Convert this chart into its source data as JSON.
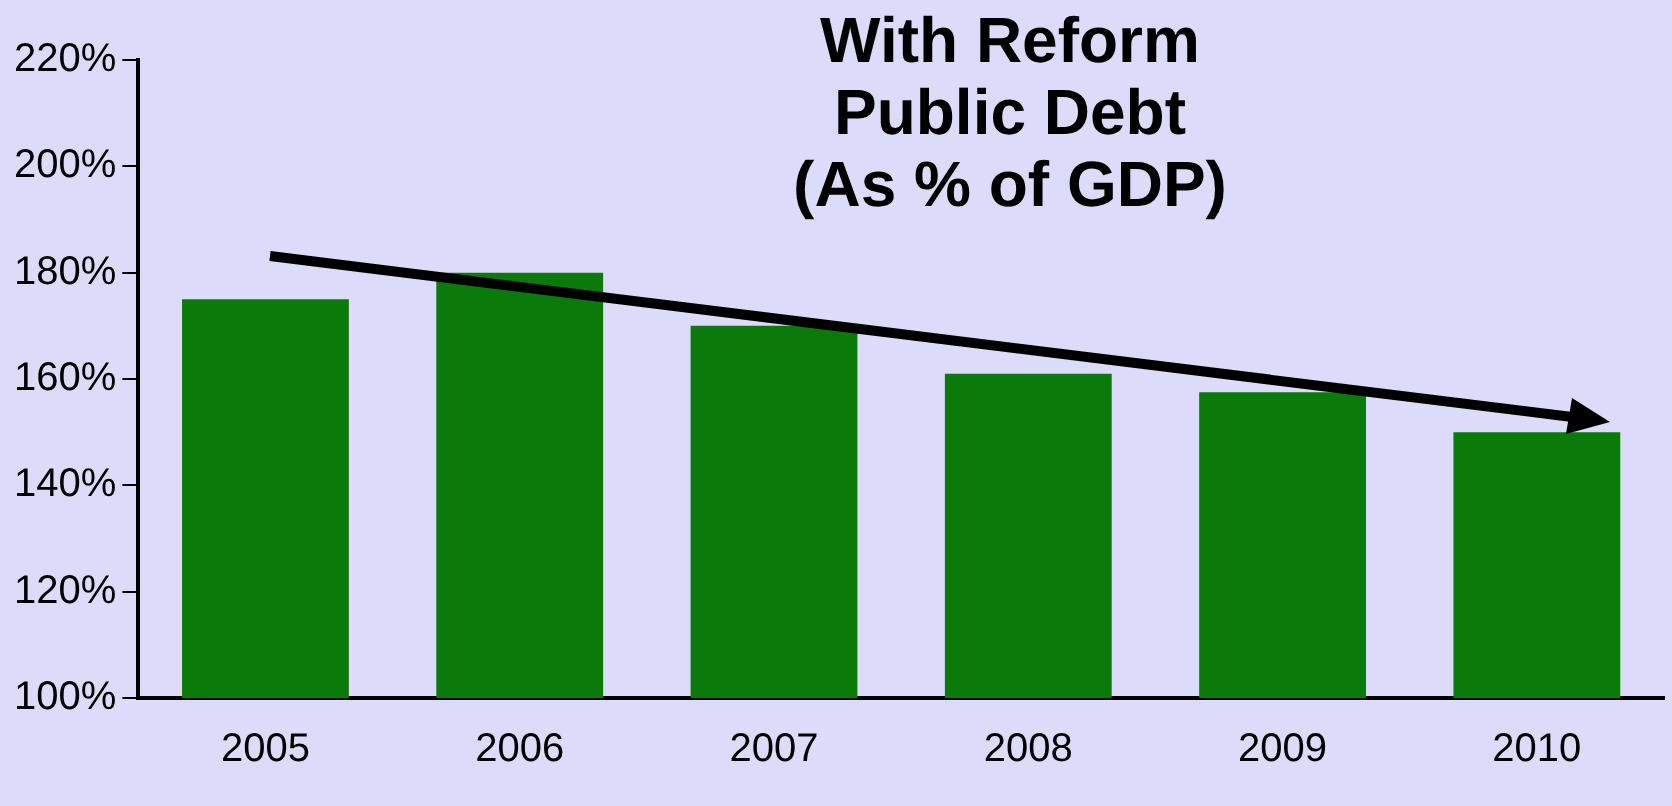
{
  "chart_data": {
    "type": "bar",
    "title": "With Reform\nPublic Debt\n(As % of GDP)",
    "categories": [
      "2005",
      "2006",
      "2007",
      "2008",
      "2009",
      "2010"
    ],
    "values": [
      175,
      180,
      170,
      161,
      157.5,
      150
    ],
    "color": "#0a7a0a",
    "ylim": [
      100,
      220
    ],
    "yticks": [
      {
        "value": 100,
        "label": "100%"
      },
      {
        "value": 120,
        "label": "120%"
      },
      {
        "value": 140,
        "label": "140%"
      },
      {
        "value": 160,
        "label": "160%"
      },
      {
        "value": 180,
        "label": "180%"
      },
      {
        "value": 200,
        "label": "200%"
      },
      {
        "value": 220,
        "label": "220%"
      }
    ],
    "grid": false,
    "legend": false
  }
}
